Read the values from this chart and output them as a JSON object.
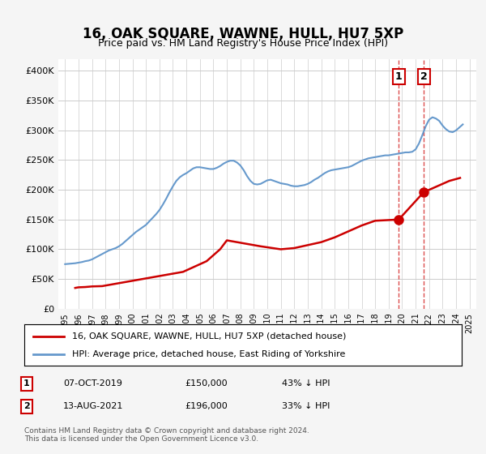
{
  "title": "16, OAK SQUARE, WAWNE, HULL, HU7 5XP",
  "subtitle": "Price paid vs. HM Land Registry's House Price Index (HPI)",
  "legend_line1": "16, OAK SQUARE, WAWNE, HULL, HU7 5XP (detached house)",
  "legend_line2": "HPI: Average price, detached house, East Riding of Yorkshire",
  "transaction1_label": "1",
  "transaction1_date": "07-OCT-2019",
  "transaction1_price": "£150,000",
  "transaction1_pct": "43% ↓ HPI",
  "transaction2_label": "2",
  "transaction2_date": "13-AUG-2021",
  "transaction2_price": "£196,000",
  "transaction2_pct": "33% ↓ HPI",
  "footnote": "Contains HM Land Registry data © Crown copyright and database right 2024.\nThis data is licensed under the Open Government Licence v3.0.",
  "sale_color": "#cc0000",
  "hpi_color": "#6699cc",
  "marker_color": "#cc0000",
  "vline_color": "#cc0000",
  "ylim": [
    0,
    420000
  ],
  "xlim_start": 1994.5,
  "xlim_end": 2025.5,
  "background_color": "#f5f5f5",
  "plot_background": "#ffffff",
  "hpi_years": [
    1995.0,
    1995.25,
    1995.5,
    1995.75,
    1996.0,
    1996.25,
    1996.5,
    1996.75,
    1997.0,
    1997.25,
    1997.5,
    1997.75,
    1998.0,
    1998.25,
    1998.5,
    1998.75,
    1999.0,
    1999.25,
    1999.5,
    1999.75,
    2000.0,
    2000.25,
    2000.5,
    2000.75,
    2001.0,
    2001.25,
    2001.5,
    2001.75,
    2002.0,
    2002.25,
    2002.5,
    2002.75,
    2003.0,
    2003.25,
    2003.5,
    2003.75,
    2004.0,
    2004.25,
    2004.5,
    2004.75,
    2005.0,
    2005.25,
    2005.5,
    2005.75,
    2006.0,
    2006.25,
    2006.5,
    2006.75,
    2007.0,
    2007.25,
    2007.5,
    2007.75,
    2008.0,
    2008.25,
    2008.5,
    2008.75,
    2009.0,
    2009.25,
    2009.5,
    2009.75,
    2010.0,
    2010.25,
    2010.5,
    2010.75,
    2011.0,
    2011.25,
    2011.5,
    2011.75,
    2012.0,
    2012.25,
    2012.5,
    2012.75,
    2013.0,
    2013.25,
    2013.5,
    2013.75,
    2014.0,
    2014.25,
    2014.5,
    2014.75,
    2015.0,
    2015.25,
    2015.5,
    2015.75,
    2016.0,
    2016.25,
    2016.5,
    2016.75,
    2017.0,
    2017.25,
    2017.5,
    2017.75,
    2018.0,
    2018.25,
    2018.5,
    2018.75,
    2019.0,
    2019.25,
    2019.5,
    2019.75,
    2020.0,
    2020.25,
    2020.5,
    2020.75,
    2021.0,
    2021.25,
    2021.5,
    2021.75,
    2022.0,
    2022.25,
    2022.5,
    2022.75,
    2023.0,
    2023.25,
    2023.5,
    2023.75,
    2024.0,
    2024.25,
    2024.5
  ],
  "hpi_values": [
    75000,
    75500,
    76000,
    76500,
    77500,
    78500,
    80000,
    81000,
    83000,
    86000,
    89000,
    92000,
    95000,
    98000,
    100000,
    102000,
    105000,
    109000,
    114000,
    119000,
    124000,
    129000,
    133000,
    137000,
    141000,
    147000,
    153000,
    159000,
    166000,
    175000,
    185000,
    196000,
    206000,
    215000,
    221000,
    225000,
    228000,
    232000,
    236000,
    238000,
    238000,
    237000,
    236000,
    235000,
    235000,
    237000,
    240000,
    244000,
    247000,
    249000,
    249000,
    246000,
    241000,
    233000,
    223000,
    215000,
    210000,
    209000,
    210000,
    213000,
    216000,
    217000,
    215000,
    213000,
    211000,
    210000,
    209000,
    207000,
    206000,
    206000,
    207000,
    208000,
    210000,
    213000,
    217000,
    220000,
    224000,
    228000,
    231000,
    233000,
    234000,
    235000,
    236000,
    237000,
    238000,
    240000,
    243000,
    246000,
    249000,
    251000,
    253000,
    254000,
    255000,
    256000,
    257000,
    258000,
    258000,
    259000,
    260000,
    261000,
    262000,
    263000,
    263000,
    264000,
    268000,
    278000,
    292000,
    307000,
    318000,
    322000,
    320000,
    316000,
    308000,
    302000,
    298000,
    297000,
    300000,
    305000,
    310000
  ],
  "sale_years": [
    1995.75,
    1996.0,
    1996.5,
    1997.0,
    1997.75,
    2003.75,
    2005.5,
    2006.5,
    2007.0,
    2009.5,
    2011.0,
    2012.0,
    2013.0,
    2014.0,
    2015.0,
    2016.0,
    2017.0,
    2018.0,
    2019.75,
    2021.6,
    2022.5,
    2023.5,
    2024.3
  ],
  "sale_values": [
    35000,
    36000,
    36500,
    37500,
    38000,
    62000,
    80000,
    100000,
    115000,
    105000,
    100000,
    102000,
    107000,
    112000,
    120000,
    130000,
    140000,
    148000,
    150000,
    196000,
    205000,
    215000,
    220000
  ],
  "transaction1_x": 2019.75,
  "transaction1_y": 150000,
  "transaction2_x": 2021.6,
  "transaction2_y": 196000
}
